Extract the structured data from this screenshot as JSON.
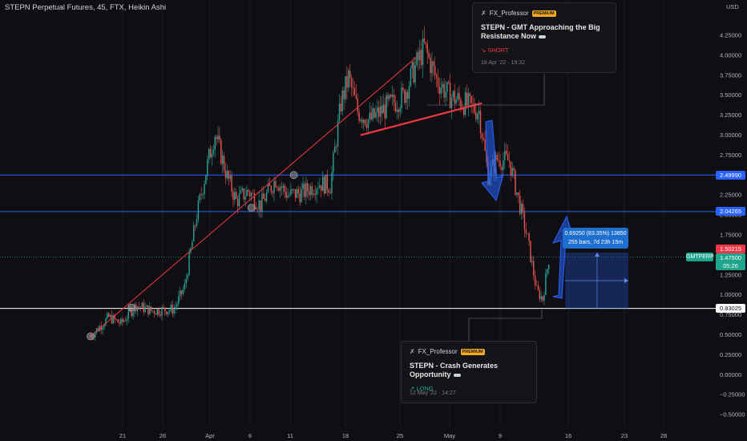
{
  "header": {
    "title": "STEPN Perpetual Futures, 45, FTX, Heikin Ashi"
  },
  "chart_data": {
    "type": "candlestick",
    "y_unit": "USD",
    "ylim": [
      -0.6,
      4.6
    ],
    "x_ticks": [
      "21",
      "26",
      "Apr",
      "6",
      "11",
      "18",
      "25",
      "May",
      "9",
      "16",
      "23",
      "28"
    ],
    "y_ticks": [
      "4.25000",
      "4.00000",
      "3.75000",
      "3.50000",
      "3.25000",
      "3.00000",
      "2.75000",
      "2.50000",
      "2.25000",
      "2.00000",
      "1.75000",
      "1.50000",
      "1.25000",
      "1.00000",
      "0.75000",
      "0.50000",
      "0.25000",
      "0.00000",
      "−0.25000",
      "−0.50000"
    ],
    "price_path": [
      [
        0,
        0.48
      ],
      [
        12,
        0.72
      ],
      [
        20,
        0.64
      ],
      [
        30,
        0.87
      ],
      [
        40,
        0.8
      ],
      [
        55,
        0.82
      ],
      [
        62,
        1.1
      ],
      [
        70,
        2.0
      ],
      [
        78,
        2.72
      ],
      [
        82,
        3.02
      ],
      [
        90,
        2.48
      ],
      [
        96,
        2.18
      ],
      [
        104,
        2.3
      ],
      [
        112,
        2.12
      ],
      [
        122,
        2.45
      ],
      [
        130,
        2.25
      ],
      [
        140,
        2.28
      ],
      [
        150,
        2.4
      ],
      [
        158,
        2.37
      ],
      [
        165,
        3.4
      ],
      [
        170,
        3.72
      ],
      [
        176,
        3.3
      ],
      [
        184,
        3.18
      ],
      [
        195,
        3.35
      ],
      [
        206,
        3.48
      ],
      [
        214,
        3.85
      ],
      [
        220,
        4.1
      ],
      [
        228,
        3.7
      ],
      [
        236,
        3.5
      ],
      [
        246,
        3.4
      ],
      [
        256,
        3.3
      ],
      [
        262,
        2.5
      ],
      [
        268,
        2.7
      ],
      [
        276,
        2.68
      ],
      [
        282,
        2.2
      ],
      [
        288,
        1.7
      ],
      [
        294,
        1.05
      ],
      [
        298,
        0.95
      ],
      [
        302,
        1.45
      ]
    ],
    "horizontal_levels": [
      {
        "value": 2.4999,
        "label": "2.49990",
        "color": "#2962ff"
      },
      {
        "value": 2.04265,
        "label": "2.04265",
        "color": "#2962ff"
      },
      {
        "value": 0.83025,
        "label": "0.83025",
        "color": "#ffffff"
      }
    ],
    "price_labels": [
      {
        "value": 1.50215,
        "label": "1.50215",
        "color": "#f23645"
      },
      {
        "value": 1.475,
        "label": "1.47500",
        "color": "#1ea58c"
      },
      {
        "label": "05:26",
        "color": "#1ea58c"
      }
    ],
    "symbol_tag": "GMTPERP",
    "trendlines": [
      {
        "name": "support-trendline",
        "from": [
          0,
          0.48
        ],
        "to": [
          215,
          3.98
        ],
        "color": "#f23645"
      },
      {
        "name": "resistance-trendline",
        "from": [
          178,
          3.0
        ],
        "to": [
          258,
          3.4
        ],
        "color": "#f23645"
      }
    ],
    "measure": {
      "line1": "0.69250 (83.35%) 13850",
      "line2": "255 bars, 7d 23h 15m"
    },
    "annotations": [
      {
        "author": "FX_Professor",
        "badge": "PREMIUM",
        "title": "STEPN - GMT Approaching the Big Resistance Now",
        "signal": "↘ SHORT",
        "signal_color": "#f23645",
        "date": "18 Apr '22 · 19:32"
      },
      {
        "author": "FX_Professor",
        "badge": "PREMIUM",
        "title": "STEPN - Crash Generates Opportunity",
        "signal": "↗ LONG",
        "signal_color": "#22ab94",
        "date": "12 May '22 · 14:27"
      }
    ]
  }
}
